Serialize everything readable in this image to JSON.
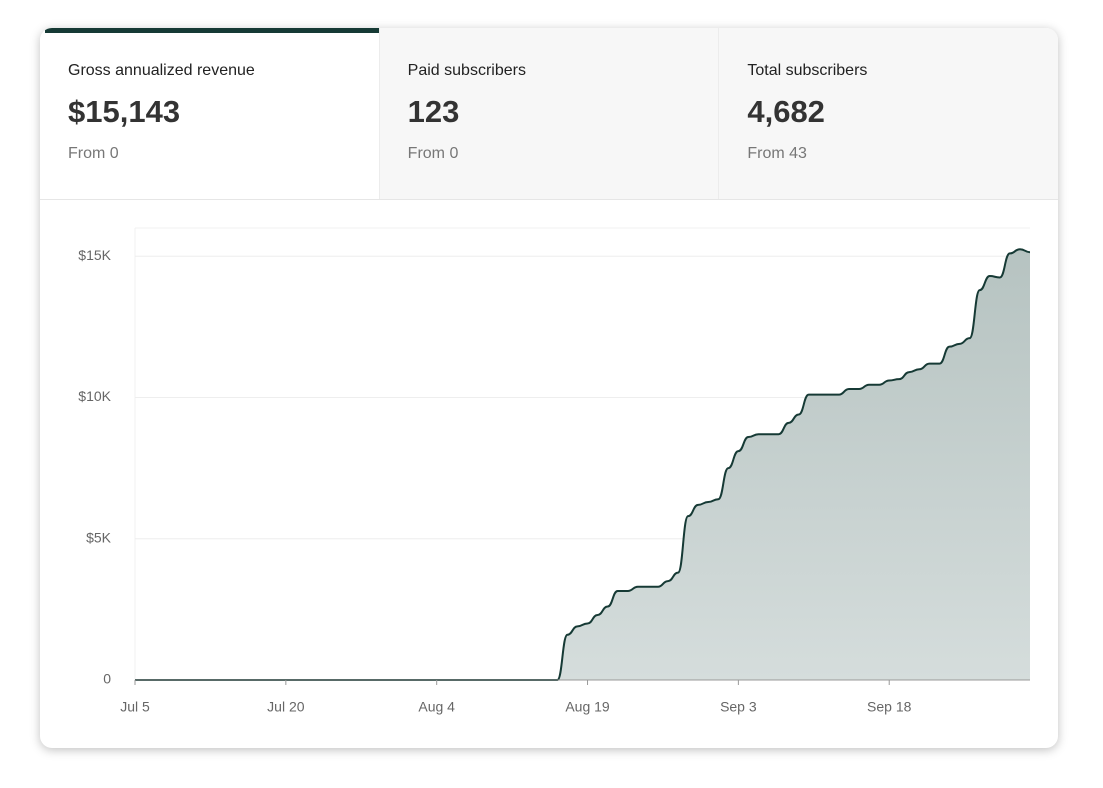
{
  "tabs": [
    {
      "label": "Gross annualized revenue",
      "value": "$15,143",
      "sub": "From 0"
    },
    {
      "label": "Paid subscribers",
      "value": "123",
      "sub": "From 0"
    },
    {
      "label": "Total subscribers",
      "value": "4,682",
      "sub": "From 43"
    }
  ],
  "chart_data": {
    "type": "area",
    "color": "#163a35",
    "categories": [
      "Jul 5",
      "Jul 6",
      "Jul 7",
      "Jul 8",
      "Jul 9",
      "Jul 10",
      "Jul 11",
      "Jul 12",
      "Jul 13",
      "Jul 14",
      "Jul 15",
      "Jul 16",
      "Jul 17",
      "Jul 18",
      "Jul 19",
      "Jul 20",
      "Jul 21",
      "Jul 22",
      "Jul 23",
      "Jul 24",
      "Jul 25",
      "Jul 26",
      "Jul 27",
      "Jul 28",
      "Jul 29",
      "Jul 30",
      "Jul 31",
      "Aug 1",
      "Aug 2",
      "Aug 3",
      "Aug 4",
      "Aug 5",
      "Aug 6",
      "Aug 7",
      "Aug 8",
      "Aug 9",
      "Aug 10",
      "Aug 11",
      "Aug 12",
      "Aug 13",
      "Aug 14",
      "Aug 15",
      "Aug 16",
      "Aug 17",
      "Aug 18",
      "Aug 19",
      "Aug 20",
      "Aug 21",
      "Aug 22",
      "Aug 23",
      "Aug 24",
      "Aug 25",
      "Aug 26",
      "Aug 27",
      "Aug 28",
      "Aug 29",
      "Aug 30",
      "Aug 31",
      "Sep 1",
      "Sep 2",
      "Sep 3",
      "Sep 4",
      "Sep 5",
      "Sep 6",
      "Sep 7",
      "Sep 8",
      "Sep 9",
      "Sep 10",
      "Sep 11",
      "Sep 12",
      "Sep 13",
      "Sep 14",
      "Sep 15",
      "Sep 16",
      "Sep 17",
      "Sep 18",
      "Sep 19",
      "Sep 20",
      "Sep 21",
      "Sep 22",
      "Sep 23",
      "Sep 24",
      "Sep 25",
      "Sep 26",
      "Sep 27",
      "Sep 28",
      "Sep 29",
      "Sep 30",
      "Oct 1",
      "Oct 2"
    ],
    "values": [
      0,
      0,
      0,
      0,
      0,
      0,
      0,
      0,
      0,
      0,
      0,
      0,
      0,
      0,
      0,
      0,
      0,
      0,
      0,
      0,
      0,
      0,
      0,
      0,
      0,
      0,
      0,
      0,
      0,
      0,
      0,
      0,
      0,
      0,
      0,
      0,
      0,
      0,
      0,
      0,
      0,
      0,
      0,
      1600,
      1900,
      2000,
      2300,
      2600,
      3150,
      3150,
      3300,
      3300,
      3300,
      3500,
      3800,
      5800,
      6200,
      6300,
      6400,
      7500,
      8100,
      8600,
      8700,
      8700,
      8700,
      9100,
      9400,
      10100,
      10100,
      10100,
      10100,
      10300,
      10300,
      10450,
      10450,
      10600,
      10650,
      10900,
      11000,
      11200,
      11200,
      11800,
      11900,
      12100,
      13800,
      14300,
      14250,
      15100,
      15250,
      15143
    ],
    "xticks": [
      "Jul 5",
      "Jul 20",
      "Aug 4",
      "Aug 19",
      "Sep 3",
      "Sep 18"
    ],
    "ylim": [
      0,
      16000
    ],
    "yticks": [
      0,
      {
        "value": 5000,
        "label": "$5K"
      },
      {
        "value": 10000,
        "label": "$10K"
      },
      {
        "value": 15000,
        "label": "$15K"
      }
    ],
    "grid": true
  }
}
